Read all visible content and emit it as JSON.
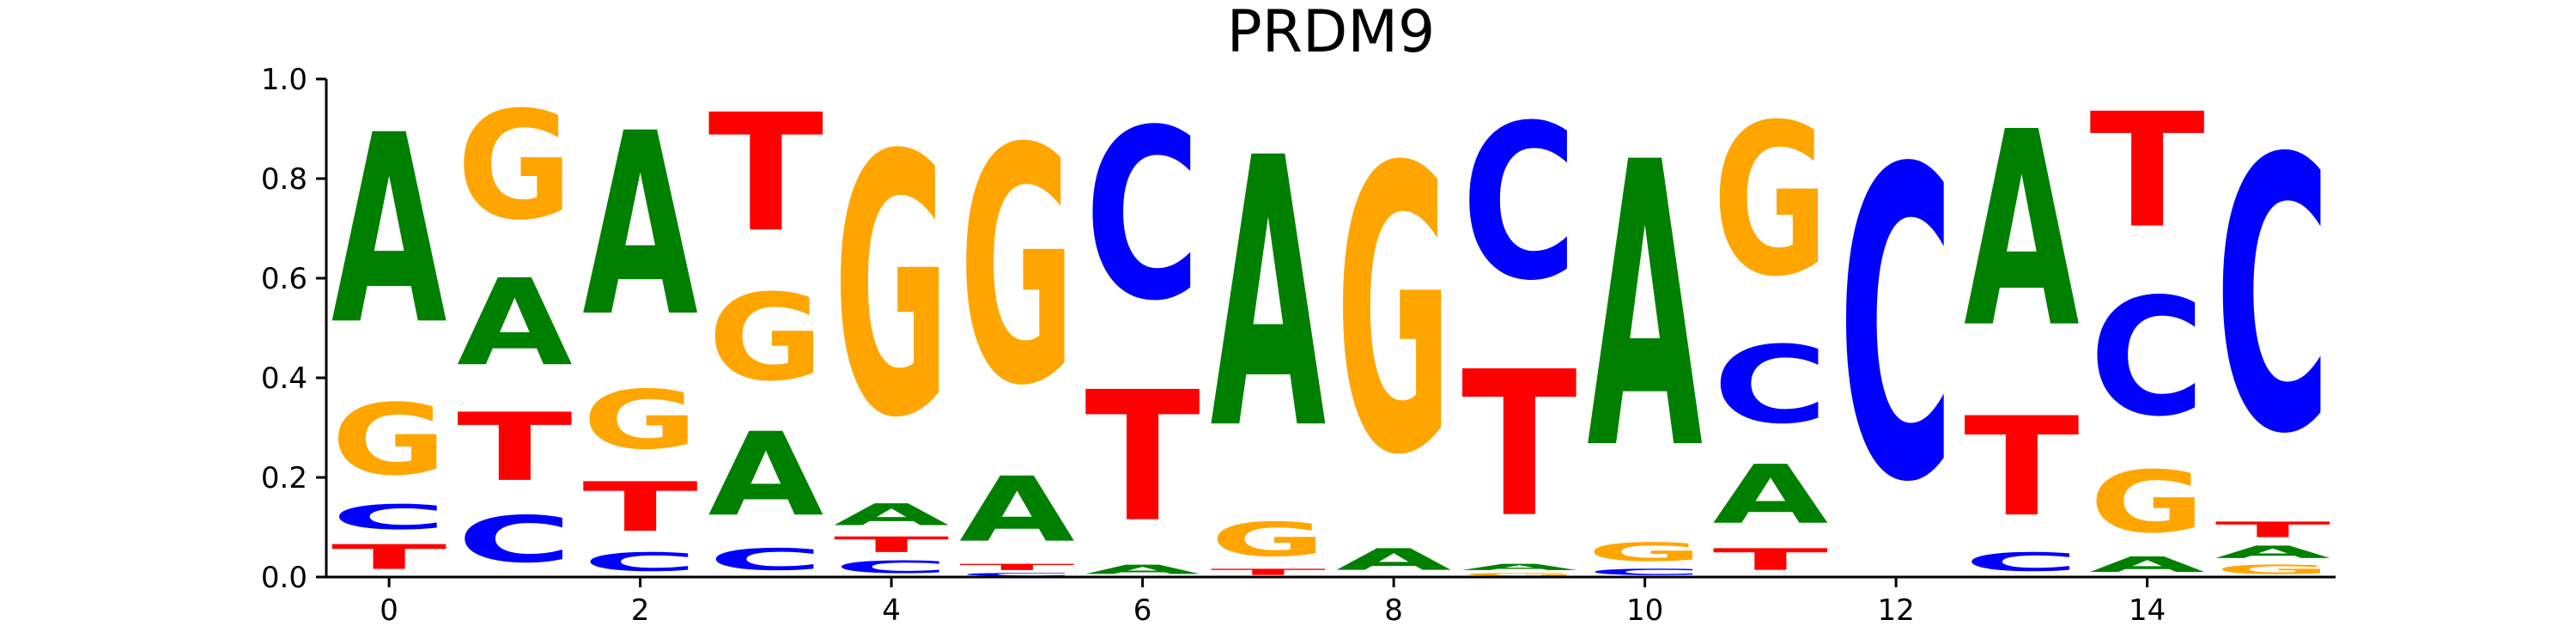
{
  "chart_data": {
    "type": "sequence_logo",
    "title": "PRDM9",
    "ylim": [
      0,
      1.0
    ],
    "xlim": [
      -0.5,
      15.5
    ],
    "y_ticks": [
      "0.0",
      "0.2",
      "0.4",
      "0.6",
      "0.8",
      "1.0"
    ],
    "x_ticks": [
      "0",
      "2",
      "4",
      "6",
      "8",
      "10",
      "12",
      "14"
    ],
    "colors": {
      "A": "#008000",
      "C": "#0000ff",
      "G": "#ffa500",
      "T": "#ff0000"
    },
    "positions": [
      {
        "pos": 0,
        "stack": [
          [
            "T",
            0.08
          ],
          [
            "C",
            0.08
          ],
          [
            "G",
            0.23
          ],
          [
            "A",
            0.61
          ]
        ]
      },
      {
        "pos": 1,
        "stack": [
          [
            "C",
            0.15
          ],
          [
            "T",
            0.22
          ],
          [
            "A",
            0.28
          ],
          [
            "G",
            0.35
          ]
        ]
      },
      {
        "pos": 2,
        "stack": [
          [
            "C",
            0.06
          ],
          [
            "T",
            0.16
          ],
          [
            "G",
            0.19
          ],
          [
            "A",
            0.59
          ]
        ]
      },
      {
        "pos": 3,
        "stack": [
          [
            "C",
            0.07
          ],
          [
            "A",
            0.27
          ],
          [
            "G",
            0.28
          ],
          [
            "T",
            0.38
          ]
        ]
      },
      {
        "pos": 4,
        "stack": [
          [
            "C",
            0.04
          ],
          [
            "T",
            0.05
          ],
          [
            "A",
            0.07
          ],
          [
            "G",
            0.84
          ]
        ]
      },
      {
        "pos": 5,
        "stack": [
          [
            "C",
            0.01
          ],
          [
            "T",
            0.02
          ],
          [
            "A",
            0.21
          ],
          [
            "G",
            0.76
          ]
        ]
      },
      {
        "pos": 6,
        "stack": [
          [
            "A",
            0.03
          ],
          [
            "T",
            0.42
          ],
          [
            "C",
            0.55
          ]
        ]
      },
      {
        "pos": 7,
        "stack": [
          [
            "T",
            0.02
          ],
          [
            "G",
            0.11
          ],
          [
            "A",
            0.87
          ]
        ]
      },
      {
        "pos": 8,
        "stack": [
          [
            "A",
            0.07
          ],
          [
            "G",
            0.92
          ]
        ]
      },
      {
        "pos": 9,
        "stack": [
          [
            "G",
            0.01
          ],
          [
            "A",
            0.02
          ],
          [
            "T",
            0.47
          ],
          [
            "C",
            0.5
          ]
        ]
      },
      {
        "pos": 10,
        "stack": [
          [
            "C",
            0.02
          ],
          [
            "G",
            0.06
          ],
          [
            "A",
            0.92
          ]
        ]
      },
      {
        "pos": 11,
        "stack": [
          [
            "T",
            0.07
          ],
          [
            "A",
            0.19
          ],
          [
            "C",
            0.25
          ],
          [
            "G",
            0.49
          ]
        ]
      },
      {
        "pos": 12,
        "stack": [
          [
            "C",
            1.0
          ]
        ]
      },
      {
        "pos": 13,
        "stack": [
          [
            "C",
            0.06
          ],
          [
            "T",
            0.32
          ],
          [
            "A",
            0.63
          ]
        ]
      },
      {
        "pos": 14,
        "stack": [
          [
            "A",
            0.05
          ],
          [
            "G",
            0.2
          ],
          [
            "C",
            0.38
          ],
          [
            "T",
            0.37
          ]
        ]
      },
      {
        "pos": 15,
        "stack": [
          [
            "G",
            0.03
          ],
          [
            "A",
            0.04
          ],
          [
            "T",
            0.05
          ],
          [
            "C",
            0.88
          ]
        ]
      }
    ]
  }
}
